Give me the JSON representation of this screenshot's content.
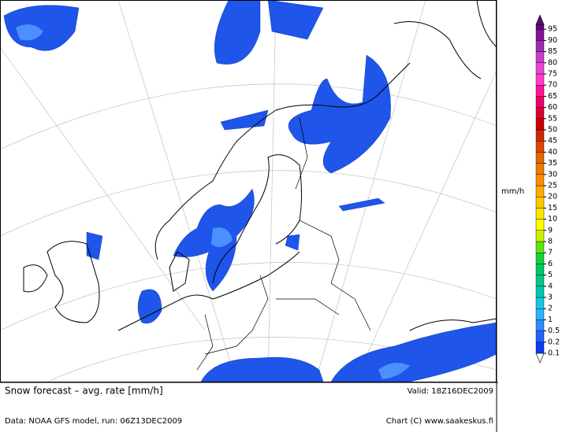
{
  "map": {
    "title": "Snow forecast – avg. rate [mm/h]",
    "valid": "Valid: 18Z16DEC2009",
    "source": "Data: NOAA GFS model, run: 06Z13DEC2009",
    "credit": "Chart (C) www.saakeskus.fi"
  },
  "legend": {
    "unit": "mm/h",
    "levels": [
      {
        "value": 0.1,
        "color": "#0a3cf0"
      },
      {
        "value": 0.2,
        "color": "#1e64ff"
      },
      {
        "value": 0.5,
        "color": "#2d8cff"
      },
      {
        "value": 1,
        "color": "#28b4ff"
      },
      {
        "value": 2,
        "color": "#14c8e6"
      },
      {
        "value": 3,
        "color": "#00c8b4"
      },
      {
        "value": 4,
        "color": "#00c88c"
      },
      {
        "value": 5,
        "color": "#00c864"
      },
      {
        "value": 6,
        "color": "#14d23c"
      },
      {
        "value": 7,
        "color": "#5ae614"
      },
      {
        "value": 8,
        "color": "#c8f000"
      },
      {
        "value": 9,
        "color": "#ffff00"
      },
      {
        "value": 10,
        "color": "#ffe600"
      },
      {
        "value": 15,
        "color": "#ffc800"
      },
      {
        "value": 20,
        "color": "#ffaa00"
      },
      {
        "value": 25,
        "color": "#ff8c00"
      },
      {
        "value": 30,
        "color": "#f07800"
      },
      {
        "value": 35,
        "color": "#e66400"
      },
      {
        "value": 40,
        "color": "#dc4600"
      },
      {
        "value": 45,
        "color": "#d22800"
      },
      {
        "value": 50,
        "color": "#c80000"
      },
      {
        "value": 55,
        "color": "#dc0032"
      },
      {
        "value": 60,
        "color": "#f00064"
      },
      {
        "value": 65,
        "color": "#ff1496"
      },
      {
        "value": 70,
        "color": "#ff3cc8"
      },
      {
        "value": 75,
        "color": "#e646d2"
      },
      {
        "value": 80,
        "color": "#c83cc8"
      },
      {
        "value": 85,
        "color": "#a028b4"
      },
      {
        "value": 90,
        "color": "#821496"
      },
      {
        "value": 95,
        "color": "#640a78"
      }
    ]
  }
}
